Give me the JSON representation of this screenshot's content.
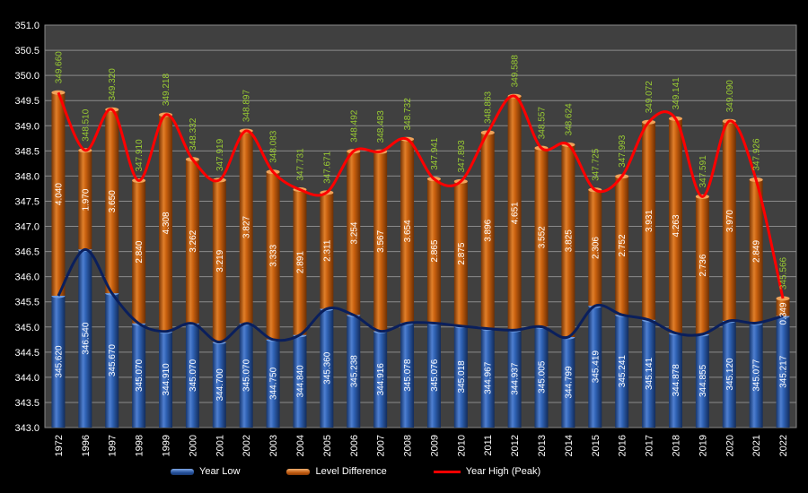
{
  "chart_data": {
    "type": "bar",
    "categories": [
      "1972",
      "1996",
      "1997",
      "1998",
      "1999",
      "2000",
      "2001",
      "2002",
      "2003",
      "2004",
      "2005",
      "2006",
      "2007",
      "2008",
      "2009",
      "2010",
      "2011",
      "2012",
      "2013",
      "2014",
      "2015",
      "2016",
      "2017",
      "2018",
      "2019",
      "2020",
      "2021",
      "2022"
    ],
    "series": [
      {
        "name": "Year Low",
        "values": [
          345.62,
          346.54,
          345.67,
          345.07,
          344.91,
          345.07,
          344.7,
          345.07,
          344.75,
          344.84,
          345.36,
          345.238,
          344.916,
          345.078,
          345.076,
          345.018,
          344.967,
          344.937,
          345.005,
          344.799,
          345.419,
          345.241,
          345.141,
          344.878,
          344.855,
          345.12,
          345.077,
          345.217
        ],
        "labels": [
          "345.620",
          "346.540",
          "345.670",
          "345.070",
          "344.910",
          "345.070",
          "344.700",
          "345.070",
          "344.750",
          "344.840",
          "345.360",
          "345.238",
          "344.916",
          "345.078",
          "345.076",
          "345.018",
          "344.967",
          "344.937",
          "345.005",
          "344.799",
          "345.419",
          "345.241",
          "345.141",
          "344.878",
          "344.855",
          "345.120",
          "345.077",
          "345.217"
        ],
        "color": "#2a5aa8"
      },
      {
        "name": "Level Difference",
        "values": [
          4.04,
          1.97,
          3.65,
          2.84,
          4.308,
          3.262,
          3.219,
          3.827,
          3.333,
          2.891,
          2.311,
          3.254,
          3.567,
          3.654,
          2.865,
          2.875,
          3.896,
          4.651,
          3.552,
          3.825,
          2.306,
          2.752,
          3.931,
          4.263,
          2.736,
          3.97,
          2.849,
          0.349
        ],
        "labels": [
          "4.040",
          "1.970",
          "3.650",
          "2.840",
          "4.308",
          "3.262",
          "3.219",
          "3.827",
          "3.333",
          "2.891",
          "2.311",
          "3.254",
          "3.567",
          "3.654",
          "2.865",
          "2.875",
          "3.896",
          "4.651",
          "3.552",
          "3.825",
          "2.306",
          "2.752",
          "3.931",
          "4.263",
          "2.736",
          "3.970",
          "2.849",
          "0.349"
        ],
        "color": "#c8600e"
      },
      {
        "name": "Year High (Peak)",
        "values": [
          349.66,
          348.51,
          349.32,
          347.91,
          349.218,
          348.332,
          347.919,
          348.897,
          348.083,
          347.731,
          347.671,
          348.492,
          348.483,
          348.732,
          347.941,
          347.893,
          348.863,
          349.588,
          348.557,
          348.624,
          347.725,
          347.993,
          349.072,
          349.141,
          347.591,
          349.09,
          347.926,
          345.566
        ],
        "labels": [
          "349.660",
          "348.510",
          "349.320",
          "347.910",
          "349.218",
          "348.332",
          "347.919",
          "348.897",
          "348.083",
          "347.731",
          "347.671",
          "348.492",
          "348.483",
          "348.732",
          "347.941",
          "347.893",
          "348.863",
          "349.588",
          "348.557",
          "348.624",
          "347.725",
          "347.993",
          "349.072",
          "349.141",
          "347.591",
          "349.090",
          "347.926",
          "345.566"
        ],
        "color": "#ff0000"
      }
    ],
    "ylim": [
      343.0,
      351.0
    ],
    "yticks": [
      "343.0",
      "343.5",
      "344.0",
      "344.5",
      "345.0",
      "345.5",
      "346.0",
      "346.5",
      "347.0",
      "347.5",
      "348.0",
      "348.5",
      "349.0",
      "349.5",
      "350.0",
      "350.5",
      "351.0"
    ],
    "grid": true,
    "legend_position": "bottom",
    "colors": {
      "background": "#000000",
      "plot_area": "#404040",
      "grid": "#8a8a8a",
      "low_line": "#0a1f5c",
      "peak_label": "#9acd32"
    }
  }
}
